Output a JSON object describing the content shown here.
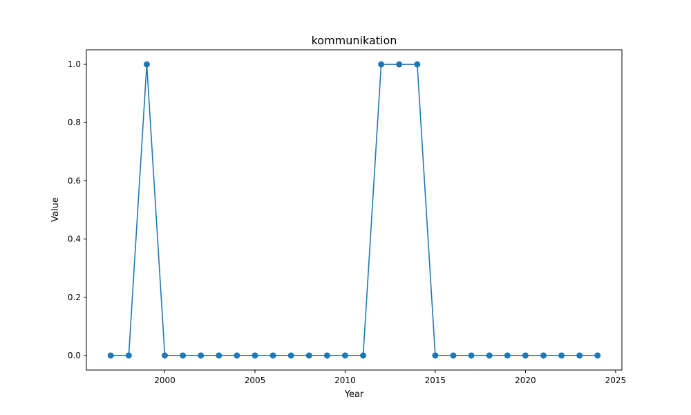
{
  "chart_data": {
    "type": "line",
    "title": "kommunikation",
    "xlabel": "Year",
    "ylabel": "Value",
    "xlim": [
      1995.65,
      2025.35
    ],
    "ylim": [
      -0.05,
      1.05
    ],
    "xticks": [
      2000,
      2005,
      2010,
      2015,
      2020,
      2025
    ],
    "yticks": [
      0.0,
      0.2,
      0.4,
      0.6,
      0.8,
      1.0
    ],
    "xtick_labels": [
      "2000",
      "2005",
      "2010",
      "2015",
      "2020",
      "2025"
    ],
    "ytick_labels": [
      "0.0",
      "0.2",
      "0.4",
      "0.6",
      "0.8",
      "1.0"
    ],
    "grid": false,
    "series": [
      {
        "color": "#1f77b4",
        "marker": "circle",
        "x": [
          1997,
          1998,
          1999,
          2000,
          2001,
          2002,
          2003,
          2004,
          2005,
          2006,
          2007,
          2008,
          2009,
          2010,
          2011,
          2012,
          2013,
          2014,
          2015,
          2016,
          2017,
          2018,
          2019,
          2020,
          2021,
          2022,
          2023,
          2024
        ],
        "y": [
          0,
          0,
          1,
          0,
          0,
          0,
          0,
          0,
          0,
          0,
          0,
          0,
          0,
          0,
          0,
          1,
          1,
          1,
          0,
          0,
          0,
          0,
          0,
          0,
          0,
          0,
          0,
          0
        ]
      }
    ]
  }
}
